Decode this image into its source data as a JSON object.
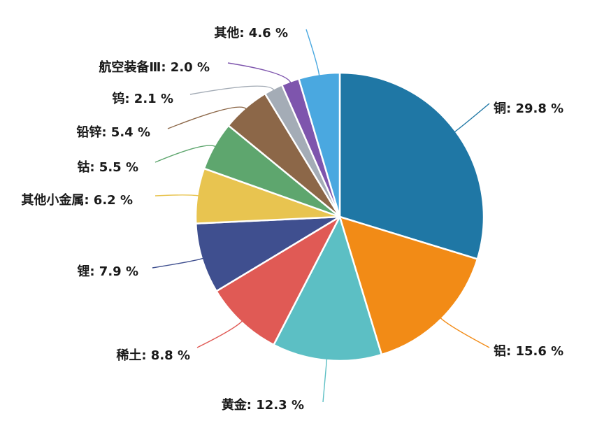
{
  "chart_data": {
    "type": "pie",
    "title": "",
    "start_angle_deg": 0,
    "direction": "clockwise",
    "label_format": "{name}: {value} %",
    "slices": [
      {
        "name": "铜",
        "value": 29.8,
        "label": "铜: 29.8 %",
        "color": "#1f77a5"
      },
      {
        "name": "铝",
        "value": 15.6,
        "label": "铝: 15.6 %",
        "color": "#f28b16"
      },
      {
        "name": "黄金",
        "value": 12.3,
        "label": "黄金: 12.3 %",
        "color": "#5cbfc4"
      },
      {
        "name": "稀土",
        "value": 8.8,
        "label": "稀土: 8.8 %",
        "color": "#e05a55"
      },
      {
        "name": "锂",
        "value": 7.9,
        "label": "锂: 7.9 %",
        "color": "#3f4f8f"
      },
      {
        "name": "其他小金属",
        "value": 6.2,
        "label": "其他小金属: 6.2 %",
        "color": "#e8c450"
      },
      {
        "name": "钴",
        "value": 5.5,
        "label": "钴: 5.5 %",
        "color": "#5ea66e"
      },
      {
        "name": "铅锌",
        "value": 5.4,
        "label": "铅锌: 5.4 %",
        "color": "#8c6748"
      },
      {
        "name": "钨",
        "value": 2.1,
        "label": "钨: 2.1 %",
        "color": "#a4acb6"
      },
      {
        "name": "航空装备Ⅲ",
        "value": 2.0,
        "label": "航空装备Ⅲ: 2.0 %",
        "color": "#7e55ad"
      },
      {
        "name": "其他",
        "value": 4.6,
        "label": "其他: 4.6 %",
        "color": "#4aa8e0"
      }
    ]
  }
}
